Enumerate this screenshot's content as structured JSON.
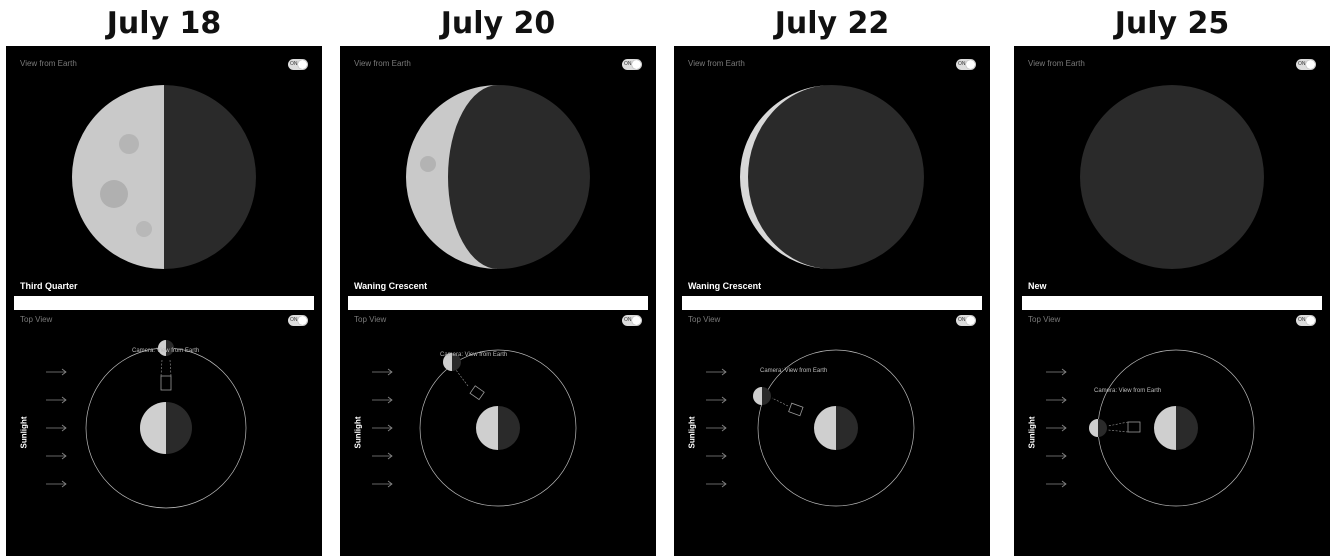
{
  "panels": [
    {
      "date": "July 18",
      "view_label": "View from Earth",
      "toggle_label": "ON",
      "phase": "Third Quarter",
      "top_view_label": "Top View",
      "sunlight": "Sunlight",
      "camera_label": "Camera: View from Earth",
      "lit_fraction": 0.5,
      "moon_angle_deg": 90
    },
    {
      "date": "July 20",
      "view_label": "View from Earth",
      "toggle_label": "ON",
      "phase": "Waning Crescent",
      "top_view_label": "Top View",
      "sunlight": "Sunlight",
      "camera_label": "Camera: View from Earth",
      "lit_fraction": 0.22,
      "moon_angle_deg": 125
    },
    {
      "date": "July 22",
      "view_label": "View from Earth",
      "toggle_label": "ON",
      "phase": "Waning Crescent",
      "top_view_label": "Top View",
      "sunlight": "Sunlight",
      "camera_label": "Camera: View from Earth",
      "lit_fraction": 0.05,
      "moon_angle_deg": 160
    },
    {
      "date": "July 25",
      "view_label": "View from Earth",
      "toggle_label": "ON",
      "phase": "New",
      "top_view_label": "Top View",
      "sunlight": "Sunlight",
      "camera_label": "Camera: View from Earth",
      "lit_fraction": 0.0,
      "moon_angle_deg": 180
    }
  ],
  "colors": {
    "lit": "#c9c9c9",
    "dark": "#2a2a2a",
    "background": "#000000",
    "orbit": "#bbbbbb"
  }
}
